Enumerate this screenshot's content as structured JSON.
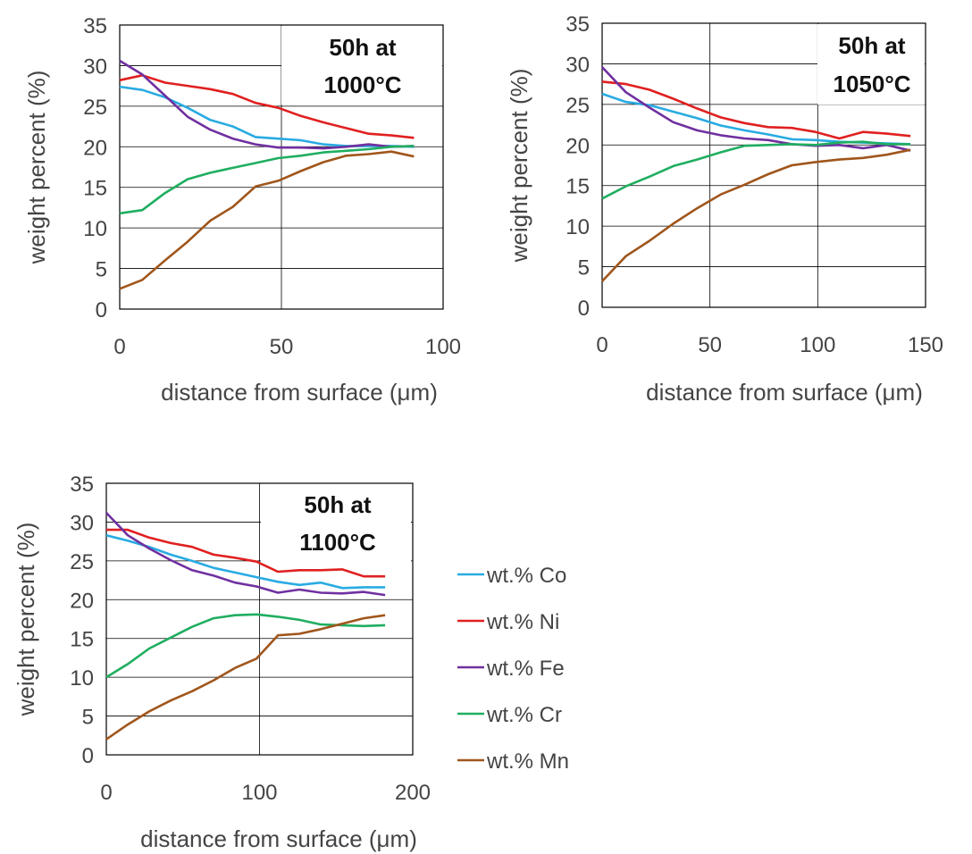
{
  "colors": {
    "Co": "#29abe2",
    "Ni": "#e02020",
    "Fe": "#7030a0",
    "Cr": "#1fae60",
    "Mn": "#a0561c",
    "grid": "#000000"
  },
  "legend": [
    {
      "key": "Co",
      "label": "wt.% Co"
    },
    {
      "key": "Ni",
      "label": "wt.% Ni"
    },
    {
      "key": "Fe",
      "label": "wt.% Fe"
    },
    {
      "key": "Cr",
      "label": "wt.% Cr"
    },
    {
      "key": "Mn",
      "label": "wt.% Mn"
    }
  ],
  "chart_data": [
    {
      "type": "line",
      "annotation": [
        "50h at",
        "1000°C"
      ],
      "xlabel": "distance from surface (μm)",
      "ylabel": "weight percent (%)",
      "xlim": [
        0,
        100
      ],
      "ylim": [
        0,
        35
      ],
      "xticks": [
        0,
        50,
        100
      ],
      "yticks": [
        0,
        5,
        10,
        15,
        20,
        25,
        30,
        35
      ],
      "grid": "major gridlines",
      "x": [
        0,
        7,
        14,
        21,
        28,
        35,
        42,
        49,
        56,
        63,
        70,
        77,
        84,
        91
      ],
      "series": [
        {
          "key": "Co",
          "name": "wt.% Co",
          "values": [
            27.4,
            27.0,
            26.1,
            24.8,
            23.3,
            22.5,
            21.2,
            21.0,
            20.8,
            20.3,
            20.1,
            20.1,
            20.1,
            20.0
          ]
        },
        {
          "key": "Ni",
          "name": "wt.% Ni",
          "values": [
            28.2,
            28.8,
            27.9,
            27.5,
            27.1,
            26.5,
            25.4,
            24.8,
            23.8,
            23.0,
            22.3,
            21.6,
            21.4,
            21.1
          ]
        },
        {
          "key": "Fe",
          "name": "wt.% Fe",
          "values": [
            30.6,
            28.9,
            26.3,
            23.7,
            22.1,
            21.0,
            20.3,
            19.9,
            19.9,
            19.8,
            20.0,
            20.3,
            20.0,
            20.1
          ]
        },
        {
          "key": "Cr",
          "name": "wt.% Cr",
          "values": [
            11.8,
            12.2,
            14.3,
            16.0,
            16.8,
            17.4,
            18.0,
            18.6,
            18.9,
            19.3,
            19.5,
            19.7,
            20.0,
            20.1
          ]
        },
        {
          "key": "Mn",
          "name": "wt.% Mn",
          "values": [
            2.5,
            3.6,
            6.0,
            8.3,
            10.9,
            12.6,
            15.1,
            15.8,
            17.0,
            18.1,
            18.9,
            19.1,
            19.4,
            18.8
          ]
        }
      ]
    },
    {
      "type": "line",
      "annotation": [
        "50h at",
        "1050°C"
      ],
      "xlabel": "distance from surface (μm)",
      "ylabel": "weight percent (%)",
      "xlim": [
        0,
        150
      ],
      "ylim": [
        0,
        35
      ],
      "xticks": [
        0,
        50,
        100,
        150
      ],
      "yticks": [
        0,
        5,
        10,
        15,
        20,
        25,
        30,
        35
      ],
      "grid": "major gridlines",
      "x": [
        0,
        11,
        22,
        33,
        44,
        55,
        66,
        77,
        88,
        99,
        110,
        121,
        132,
        143
      ],
      "series": [
        {
          "key": "Co",
          "name": "wt.% Co",
          "values": [
            26.3,
            25.3,
            24.9,
            24.1,
            23.3,
            22.4,
            21.8,
            21.3,
            20.7,
            20.6,
            20.4,
            20.3,
            20.2,
            20.1
          ]
        },
        {
          "key": "Ni",
          "name": "wt.% Ni",
          "values": [
            27.8,
            27.5,
            26.8,
            25.7,
            24.5,
            23.4,
            22.7,
            22.2,
            22.1,
            21.6,
            20.8,
            21.6,
            21.4,
            21.1
          ]
        },
        {
          "key": "Fe",
          "name": "wt.% Fe",
          "values": [
            29.6,
            26.5,
            24.6,
            22.8,
            21.8,
            21.2,
            20.8,
            20.6,
            20.1,
            19.9,
            20.0,
            19.6,
            20.0,
            19.3
          ]
        },
        {
          "key": "Cr",
          "name": "wt.% Cr",
          "values": [
            13.4,
            14.9,
            16.1,
            17.4,
            18.2,
            19.1,
            19.9,
            20.0,
            20.1,
            20.0,
            20.3,
            20.4,
            20.1,
            20.1
          ]
        },
        {
          "key": "Mn",
          "name": "wt.% Mn",
          "values": [
            3.2,
            6.3,
            8.2,
            10.3,
            12.2,
            13.9,
            15.1,
            16.4,
            17.5,
            17.9,
            18.2,
            18.4,
            18.8,
            19.4
          ]
        }
      ]
    },
    {
      "type": "line",
      "annotation": [
        "50h at",
        "1100°C"
      ],
      "xlabel": "distance from surface (μm)",
      "ylabel": "weight percent (%)",
      "xlim": [
        0,
        200
      ],
      "ylim": [
        0,
        35
      ],
      "xticks": [
        0,
        100,
        200
      ],
      "yticks": [
        0,
        5,
        10,
        15,
        20,
        25,
        30,
        35
      ],
      "grid": "major gridlines",
      "x": [
        0,
        14,
        28,
        42,
        56,
        70,
        84,
        98,
        112,
        126,
        140,
        154,
        168,
        182
      ],
      "series": [
        {
          "key": "Co",
          "name": "wt.% Co",
          "values": [
            28.3,
            27.6,
            26.8,
            25.8,
            25.0,
            24.1,
            23.5,
            22.9,
            22.3,
            21.9,
            22.2,
            21.5,
            21.6,
            21.6
          ]
        },
        {
          "key": "Ni",
          "name": "wt.% Ni",
          "values": [
            29.0,
            29.0,
            28.0,
            27.3,
            26.8,
            25.8,
            25.4,
            24.9,
            23.6,
            23.8,
            23.8,
            23.9,
            23.0,
            23.0
          ]
        },
        {
          "key": "Fe",
          "name": "wt.% Fe",
          "values": [
            31.2,
            28.3,
            26.6,
            25.1,
            23.8,
            23.1,
            22.2,
            21.7,
            20.9,
            21.3,
            20.9,
            20.8,
            21.0,
            20.6
          ]
        },
        {
          "key": "Cr",
          "name": "wt.% Cr",
          "values": [
            10.0,
            11.7,
            13.7,
            15.1,
            16.5,
            17.6,
            18.0,
            18.1,
            17.8,
            17.4,
            16.8,
            16.7,
            16.6,
            16.7
          ]
        },
        {
          "key": "Mn",
          "name": "wt.% Mn",
          "values": [
            2.0,
            3.9,
            5.6,
            7.0,
            8.2,
            9.6,
            11.2,
            12.4,
            15.4,
            15.6,
            16.2,
            16.9,
            17.6,
            18.0
          ]
        }
      ]
    }
  ]
}
